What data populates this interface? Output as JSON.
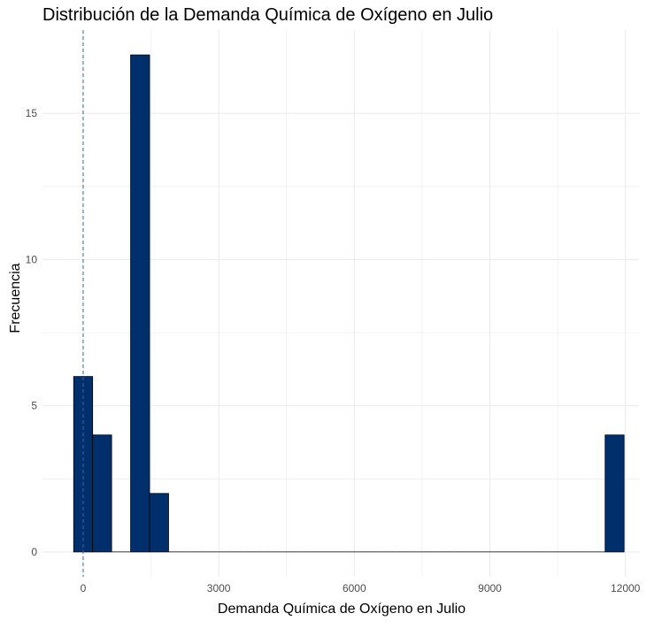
{
  "chart_data": {
    "type": "bar",
    "title": "Distribución de la Demanda Química de Oxígeno en Julio",
    "xlabel": "Demanda Química de Oxígeno en Julio",
    "ylabel": "Frecuencia",
    "xlim": [
      -900,
      12300
    ],
    "ylim": [
      -0.85,
      17.85
    ],
    "x_ticks": [
      0,
      3000,
      6000,
      9000,
      12000
    ],
    "y_ticks": [
      0,
      5,
      10,
      15
    ],
    "grid": true,
    "bin_width": 420,
    "bins": [
      {
        "start": -210,
        "end": 210,
        "count": 6
      },
      {
        "start": 210,
        "end": 630,
        "count": 4
      },
      {
        "start": 630,
        "end": 1050,
        "count": 0
      },
      {
        "start": 1050,
        "end": 1470,
        "count": 17
      },
      {
        "start": 1470,
        "end": 1890,
        "count": 2
      },
      {
        "start": 1890,
        "end": 2310,
        "count": 0
      },
      {
        "start": 2310,
        "end": 2730,
        "count": 0
      },
      {
        "start": 2730,
        "end": 3150,
        "count": 0
      },
      {
        "start": 3150,
        "end": 3570,
        "count": 0
      },
      {
        "start": 3570,
        "end": 3990,
        "count": 0
      },
      {
        "start": 3990,
        "end": 4410,
        "count": 0
      },
      {
        "start": 4410,
        "end": 4830,
        "count": 0
      },
      {
        "start": 4830,
        "end": 5250,
        "count": 0
      },
      {
        "start": 5250,
        "end": 5670,
        "count": 0
      },
      {
        "start": 5670,
        "end": 6090,
        "count": 0
      },
      {
        "start": 6090,
        "end": 6510,
        "count": 0
      },
      {
        "start": 6510,
        "end": 6930,
        "count": 0
      },
      {
        "start": 6930,
        "end": 7350,
        "count": 0
      },
      {
        "start": 7350,
        "end": 7770,
        "count": 0
      },
      {
        "start": 7770,
        "end": 8190,
        "count": 0
      },
      {
        "start": 8190,
        "end": 8610,
        "count": 0
      },
      {
        "start": 8610,
        "end": 9030,
        "count": 0
      },
      {
        "start": 9030,
        "end": 9450,
        "count": 0
      },
      {
        "start": 9450,
        "end": 9870,
        "count": 0
      },
      {
        "start": 9870,
        "end": 10290,
        "count": 0
      },
      {
        "start": 10290,
        "end": 10710,
        "count": 0
      },
      {
        "start": 10710,
        "end": 11130,
        "count": 0
      },
      {
        "start": 11130,
        "end": 11550,
        "count": 0
      },
      {
        "start": 11550,
        "end": 11970,
        "count": 4
      }
    ],
    "reference_line": {
      "x": 0,
      "style": "dashed",
      "color": "#2e6da4"
    },
    "colors": {
      "fill": "#002f6c",
      "outline": "#000000",
      "grid": "#ebebeb"
    }
  }
}
